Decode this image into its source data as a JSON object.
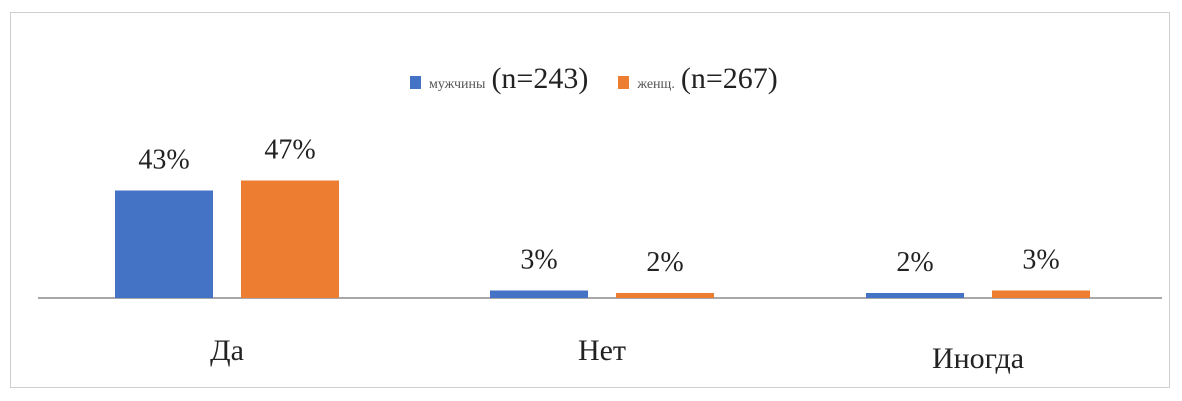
{
  "chart_data": {
    "type": "bar",
    "categories": [
      "Да",
      "Нет",
      "Иногда"
    ],
    "series": [
      {
        "name": "мужчины",
        "values": [
          43,
          3,
          2
        ],
        "color": "#4472C4"
      },
      {
        "name": "женщ.",
        "values": [
          47,
          2,
          3
        ],
        "color": "#ED7D31"
      }
    ],
    "value_suffix": "%",
    "ylim": [
      0,
      50
    ],
    "grid": false,
    "legend_position": "top-center"
  },
  "legend": [
    {
      "label": "мужчины",
      "n": "(n=243)",
      "color": "#4472C4"
    },
    {
      "label": "женщ.",
      "n": "(n=267)",
      "color": "#ED7D31"
    }
  ]
}
